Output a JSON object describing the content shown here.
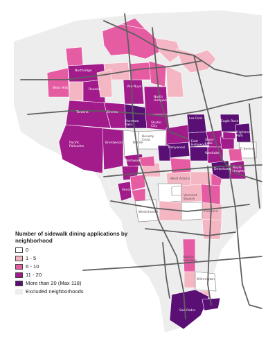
{
  "colors": {
    "cat_0": "#ffffff",
    "cat_1_5": "#f4b6c2",
    "cat_6_10": "#e55ca3",
    "cat_11_20": "#a11b8b",
    "cat_20_plus": "#5a0f74",
    "excluded": "#ededed",
    "highway": "#5f5f5f",
    "border": "#777777"
  },
  "legend": {
    "title": "Number of sidewalk dining applications by neighborhood",
    "items": [
      {
        "label": "0",
        "color_key": "cat_0"
      },
      {
        "label": "1 - 5",
        "color_key": "cat_1_5"
      },
      {
        "label": "6 - 10",
        "color_key": "cat_6_10"
      },
      {
        "label": "11 - 20",
        "color_key": "cat_11_20"
      },
      {
        "label": "More than 20 (Max 118)",
        "color_key": "cat_20_plus"
      },
      {
        "label": "Excluded neighborhoods",
        "color_key": "excluded"
      }
    ]
  },
  "neighborhood_labels": [
    {
      "name": "West Hills",
      "dark": false
    },
    {
      "name": "Northridge",
      "dark": false
    },
    {
      "name": "Reseda",
      "dark": false
    },
    {
      "name": "Van Nuys",
      "dark": false
    },
    {
      "name": "North Hollywood",
      "dark": false
    },
    {
      "name": "Tarzana",
      "dark": false
    },
    {
      "name": "Encino",
      "dark": false
    },
    {
      "name": "Sherman Oaks",
      "dark": false
    },
    {
      "name": "Studio City",
      "dark": false
    },
    {
      "name": "Pacific Palisades",
      "dark": false
    },
    {
      "name": "Brentwood",
      "dark": false
    },
    {
      "name": "Beverly Crest",
      "dark": true
    },
    {
      "name": "Bel Air",
      "dark": true
    },
    {
      "name": "Westwood",
      "dark": false
    },
    {
      "name": "Los Feliz",
      "dark": false
    },
    {
      "name": "Eagle Rock",
      "dark": false
    },
    {
      "name": "Highland Park",
      "dark": false
    },
    {
      "name": "Hollywood",
      "dark": false
    },
    {
      "name": "East Hollywood",
      "dark": false
    },
    {
      "name": "Silver Lake",
      "dark": false
    },
    {
      "name": "El Sereno",
      "dark": true
    },
    {
      "name": "Westlake",
      "dark": false
    },
    {
      "name": "Downtown",
      "dark": false
    },
    {
      "name": "Boyle Heights",
      "dark": false
    },
    {
      "name": "Venice",
      "dark": false
    },
    {
      "name": "West Adams",
      "dark": true
    },
    {
      "name": "Vermont Square",
      "dark": true
    },
    {
      "name": "Westchester",
      "dark": true
    },
    {
      "name": "Florence",
      "dark": true
    },
    {
      "name": "Harbor Gateway",
      "dark": true
    },
    {
      "name": "Wilmington",
      "dark": true
    },
    {
      "name": "San Pedro",
      "dark": false
    }
  ]
}
